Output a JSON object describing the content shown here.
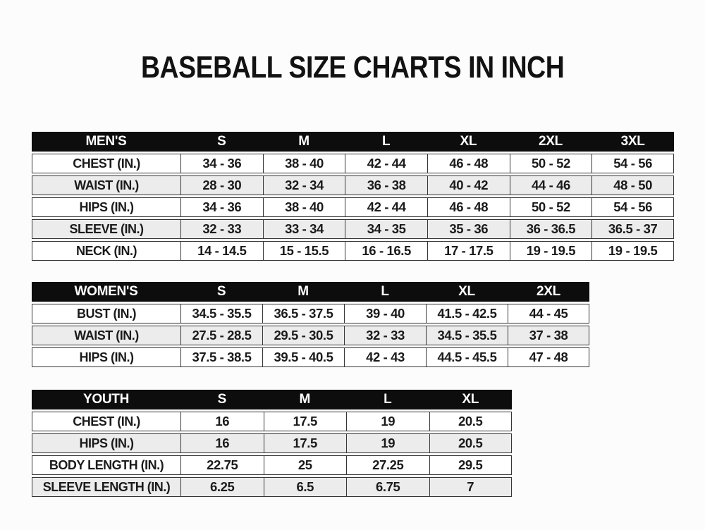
{
  "page": {
    "title": "BASEBALL SIZE CHARTS IN INCH"
  },
  "colors": {
    "page_bg": "#fcfcfc",
    "header_bg": "#0d0d0d",
    "header_text": "#ffffff",
    "row_bg": "#ffffff",
    "row_alt_bg": "#ececec",
    "border": "#363636",
    "text": "#1b1b1b"
  },
  "chart_data": [
    {
      "type": "table",
      "name": "mens",
      "header_label": "MEN'S",
      "columns": [
        "S",
        "M",
        "L",
        "XL",
        "2XL",
        "3XL"
      ],
      "rows": [
        {
          "label": "CHEST (IN.)",
          "values": [
            "34 - 36",
            "38 - 40",
            "42 - 44",
            "46 - 48",
            "50 - 52",
            "54 - 56"
          ]
        },
        {
          "label": "WAIST (IN.)",
          "values": [
            "28 - 30",
            "32 - 34",
            "36 - 38",
            "40 - 42",
            "44 - 46",
            "48 - 50"
          ]
        },
        {
          "label": "HIPS (IN.)",
          "values": [
            "34 - 36",
            "38 - 40",
            "42 - 44",
            "46 - 48",
            "50 - 52",
            "54 - 56"
          ]
        },
        {
          "label": "SLEEVE (IN.)",
          "values": [
            "32 - 33",
            "33 - 34",
            "34 - 35",
            "35 - 36",
            "36 - 36.5",
            "36.5 - 37"
          ]
        },
        {
          "label": "NECK (IN.)",
          "values": [
            "14 - 14.5",
            "15 - 15.5",
            "16 - 16.5",
            "17 - 17.5",
            "19 - 19.5",
            "19 - 19.5"
          ]
        }
      ]
    },
    {
      "type": "table",
      "name": "womens",
      "header_label": "WOMEN'S",
      "columns": [
        "S",
        "M",
        "L",
        "XL",
        "2XL"
      ],
      "rows": [
        {
          "label": "BUST (IN.)",
          "values": [
            "34.5 - 35.5",
            "36.5 - 37.5",
            "39 - 40",
            "41.5 - 42.5",
            "44 - 45"
          ]
        },
        {
          "label": "WAIST (IN.)",
          "values": [
            "27.5 - 28.5",
            "29.5 - 30.5",
            "32 - 33",
            "34.5 - 35.5",
            "37 - 38"
          ]
        },
        {
          "label": "HIPS (IN.)",
          "values": [
            "37.5 - 38.5",
            "39.5 - 40.5",
            "42 - 43",
            "44.5 - 45.5",
            "47 - 48"
          ]
        }
      ]
    },
    {
      "type": "table",
      "name": "youth",
      "header_label": "YOUTH",
      "columns": [
        "S",
        "M",
        "L",
        "XL"
      ],
      "rows": [
        {
          "label": "CHEST (IN.)",
          "values": [
            "16",
            "17.5",
            "19",
            "20.5"
          ]
        },
        {
          "label": "HIPS (IN.)",
          "values": [
            "16",
            "17.5",
            "19",
            "20.5"
          ]
        },
        {
          "label": "BODY LENGTH (IN.)",
          "values": [
            "22.75",
            "25",
            "27.25",
            "29.5"
          ]
        },
        {
          "label": "SLEEVE LENGTH (IN.)",
          "values": [
            "6.25",
            "6.5",
            "6.75",
            "7"
          ]
        }
      ]
    }
  ]
}
